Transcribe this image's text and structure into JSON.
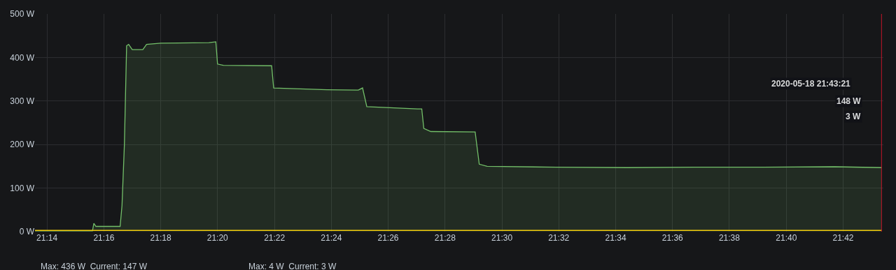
{
  "chart_data": {
    "type": "area",
    "x": [
      21.2263,
      21.26,
      21.2608,
      21.262,
      21.2762,
      21.2773,
      21.2787,
      21.28,
      21.2812,
      21.2833,
      21.2895,
      21.2917,
      21.3,
      21.3283,
      21.3323,
      21.3333,
      21.3367,
      21.365,
      21.3662,
      21.3975,
      21.4158,
      21.4183,
      21.4208,
      21.4505,
      21.453,
      21.4542,
      21.4583,
      21.4843,
      21.4867,
      21.4913,
      21.5317,
      21.5733,
      21.6133,
      21.6533,
      21.695,
      21.7225
    ],
    "series": [
      {
        "color": "#73bf69",
        "values": [
          2,
          2,
          19,
          12,
          12,
          60,
          200,
          427,
          430,
          418,
          418,
          430,
          433,
          434,
          436,
          385,
          382,
          381,
          330,
          326,
          325,
          330,
          287,
          282,
          282,
          237,
          230,
          229,
          155,
          150,
          148,
          147,
          148,
          148,
          149,
          147
        ]
      },
      {
        "type": "line",
        "color": "#f2cc0c",
        "values": [
          3,
          3,
          3,
          3,
          3,
          3,
          3,
          3,
          3,
          3,
          3,
          3,
          3,
          3,
          3,
          3,
          3,
          3,
          3,
          3,
          3,
          3,
          3,
          3,
          3,
          3,
          3,
          3,
          3,
          3,
          3,
          3,
          3,
          3,
          3,
          3
        ]
      }
    ],
    "xlim": [
      21.2263,
      21.7236
    ],
    "xticks": [
      {
        "value": 21.2333,
        "label": "21:14"
      },
      {
        "value": 21.2667,
        "label": "21:16"
      },
      {
        "value": 21.3,
        "label": "21:18"
      },
      {
        "value": 21.3333,
        "label": "21:20"
      },
      {
        "value": 21.3667,
        "label": "21:22"
      },
      {
        "value": 21.4,
        "label": "21:24"
      },
      {
        "value": 21.4333,
        "label": "21:26"
      },
      {
        "value": 21.4667,
        "label": "21:28"
      },
      {
        "value": 21.5,
        "label": "21:30"
      },
      {
        "value": 21.5333,
        "label": "21:32"
      },
      {
        "value": 21.5667,
        "label": "21:34"
      },
      {
        "value": 21.6,
        "label": "21:36"
      },
      {
        "value": 21.6333,
        "label": "21:38"
      },
      {
        "value": 21.6667,
        "label": "21:40"
      },
      {
        "value": 21.7,
        "label": "21:42"
      }
    ],
    "ylim": [
      0,
      500
    ],
    "yticks": [
      {
        "value": 0,
        "label": "0 W"
      },
      {
        "value": 100,
        "label": "100 W"
      },
      {
        "value": 200,
        "label": "200 W"
      },
      {
        "value": 300,
        "label": "300 W"
      },
      {
        "value": 400,
        "label": "400 W"
      },
      {
        "value": 500,
        "label": "500 W"
      }
    ],
    "grid": true,
    "ref_lines": [
      {
        "axis": "x",
        "value": 21.7225,
        "color": "#c4162a"
      }
    ],
    "annotations": [
      "2020-05-18 21:43:21",
      "148 W",
      "3 W",
      "Max: 436 W  Current: 147 W",
      "Max: 4 W  Current: 3 W"
    ]
  }
}
